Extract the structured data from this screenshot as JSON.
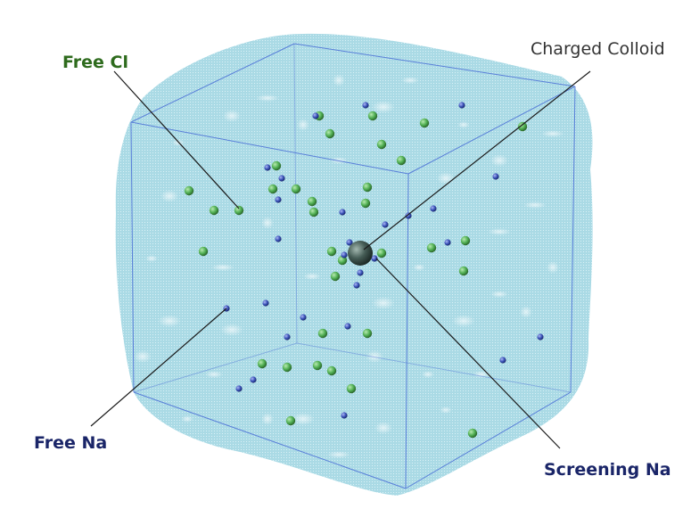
{
  "labels": {
    "free_cl": "Free Cl",
    "charged_colloid": "Charged Colloid",
    "free_na": "Free Na",
    "screening_na": "Screening Na"
  },
  "colors": {
    "free_cl_label": "#2e6b1d",
    "charged_colloid_label": "#333333",
    "free_na_label": "#1a2568",
    "screening_na_label": "#1a2568",
    "water_fill": "#9cd4e0",
    "box_edge": "#4a6fd6",
    "cl_ion": "#4fae52",
    "na_ion": "#3a52b8",
    "colloid": "#455c55",
    "leader_line": "#1a1a1a"
  },
  "legend_items": [
    "cl-ion",
    "na-ion",
    "colloid",
    "water-box"
  ]
}
